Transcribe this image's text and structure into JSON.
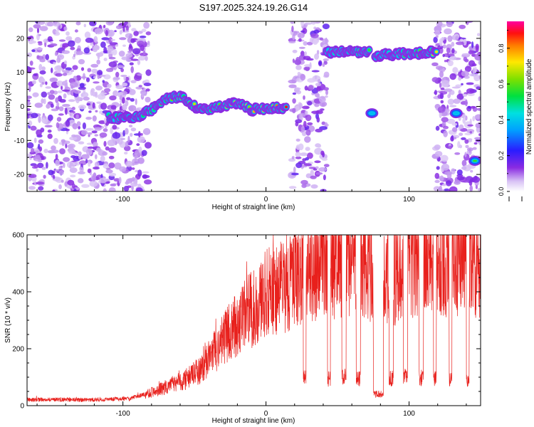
{
  "figure_title": "S197.2025.324.19.26.G14",
  "chart_data": [
    {
      "type": "heatmap",
      "title": "S197.2025.324.19.26.G14",
      "xlabel": "Height of straight line (km)",
      "ylabel": "Frequency (Hz)",
      "xlim": [
        -167,
        150
      ],
      "ylim": [
        -25,
        25
      ],
      "x_ticks": [
        -100,
        0,
        100
      ],
      "y_ticks": [
        -20,
        -10,
        0,
        10,
        20
      ],
      "colorbar": {
        "label": "Normalized spectral amplitude",
        "range": [
          0,
          0.95
        ],
        "ticks": [
          0.0,
          0.2,
          0.4,
          0.6,
          0.8
        ]
      },
      "noise_regions_km": [
        [
          -167,
          -82
        ],
        [
          18,
          43
        ],
        [
          118,
          150
        ]
      ],
      "ridges": [
        {
          "name": "main-track",
          "points": [
            [
              -110,
              -3
            ],
            [
              -100,
              -3.5
            ],
            [
              -90,
              -3
            ],
            [
              -80,
              -1
            ],
            [
              -70,
              2
            ],
            [
              -60,
              3
            ],
            [
              -50,
              0
            ],
            [
              -40,
              -1
            ],
            [
              -30,
              0
            ],
            [
              -20,
              1
            ],
            [
              -10,
              -1
            ],
            [
              0,
              -0.5
            ],
            [
              15,
              -0.5
            ]
          ],
          "peak_amplitude": 0.95
        },
        {
          "name": "upper-band-1",
          "points": [
            [
              42,
              16
            ],
            [
              73,
              16
            ]
          ],
          "peak_amplitude": 0.8
        },
        {
          "name": "upper-band-2",
          "points": [
            [
              76,
              15
            ],
            [
              120,
              16
            ]
          ],
          "peak_amplitude": 0.85
        },
        {
          "name": "blob-1",
          "points": [
            [
              74,
              -2
            ]
          ],
          "peak_amplitude": 0.4
        },
        {
          "name": "blob-2",
          "points": [
            [
              133,
              -2
            ]
          ],
          "peak_amplitude": 0.4
        },
        {
          "name": "blob-3",
          "points": [
            [
              146,
              -16
            ]
          ],
          "peak_amplitude": 0.6
        }
      ]
    },
    {
      "type": "line",
      "title": "",
      "xlabel": "Height of straight line (km)",
      "ylabel": "SNR (10 * v/v)",
      "xlim": [
        -167,
        150
      ],
      "ylim": [
        0,
        600
      ],
      "x_ticks": [
        -100,
        0,
        100
      ],
      "y_ticks": [
        0,
        200,
        400,
        600
      ],
      "series": [
        {
          "name": "SNR",
          "color": "#e8201c",
          "x": [
            -167,
            -150,
            -130,
            -110,
            -95,
            -85,
            -75,
            -65,
            -55,
            -45,
            -38,
            -30,
            -20,
            -12,
            -5,
            0,
            10,
            20,
            30,
            40,
            50,
            60,
            70,
            80,
            90,
            100,
            110,
            120,
            130,
            140,
            150
          ],
          "y": [
            20,
            22,
            20,
            22,
            25,
            40,
            55,
            75,
            95,
            130,
            175,
            230,
            290,
            330,
            360,
            390,
            420,
            440,
            470,
            510,
            500,
            490,
            505,
            450,
            470,
            520,
            500,
            510,
            520,
            540,
            490
          ],
          "dropouts": [
            {
              "from": 26,
              "to": 28,
              "value": 100
            },
            {
              "from": 43,
              "to": 45,
              "value": 95
            },
            {
              "from": 53,
              "to": 56,
              "value": 100
            },
            {
              "from": 63,
              "to": 66,
              "value": 95
            },
            {
              "from": 75,
              "to": 82,
              "value": 40
            },
            {
              "from": 86,
              "to": 89,
              "value": 95
            },
            {
              "from": 96,
              "to": 99,
              "value": 100
            },
            {
              "from": 107,
              "to": 110,
              "value": 100
            },
            {
              "from": 117,
              "to": 119,
              "value": 95
            },
            {
              "from": 128,
              "to": 130,
              "value": 90
            },
            {
              "from": 140,
              "to": 142,
              "value": 95
            }
          ]
        }
      ]
    }
  ]
}
